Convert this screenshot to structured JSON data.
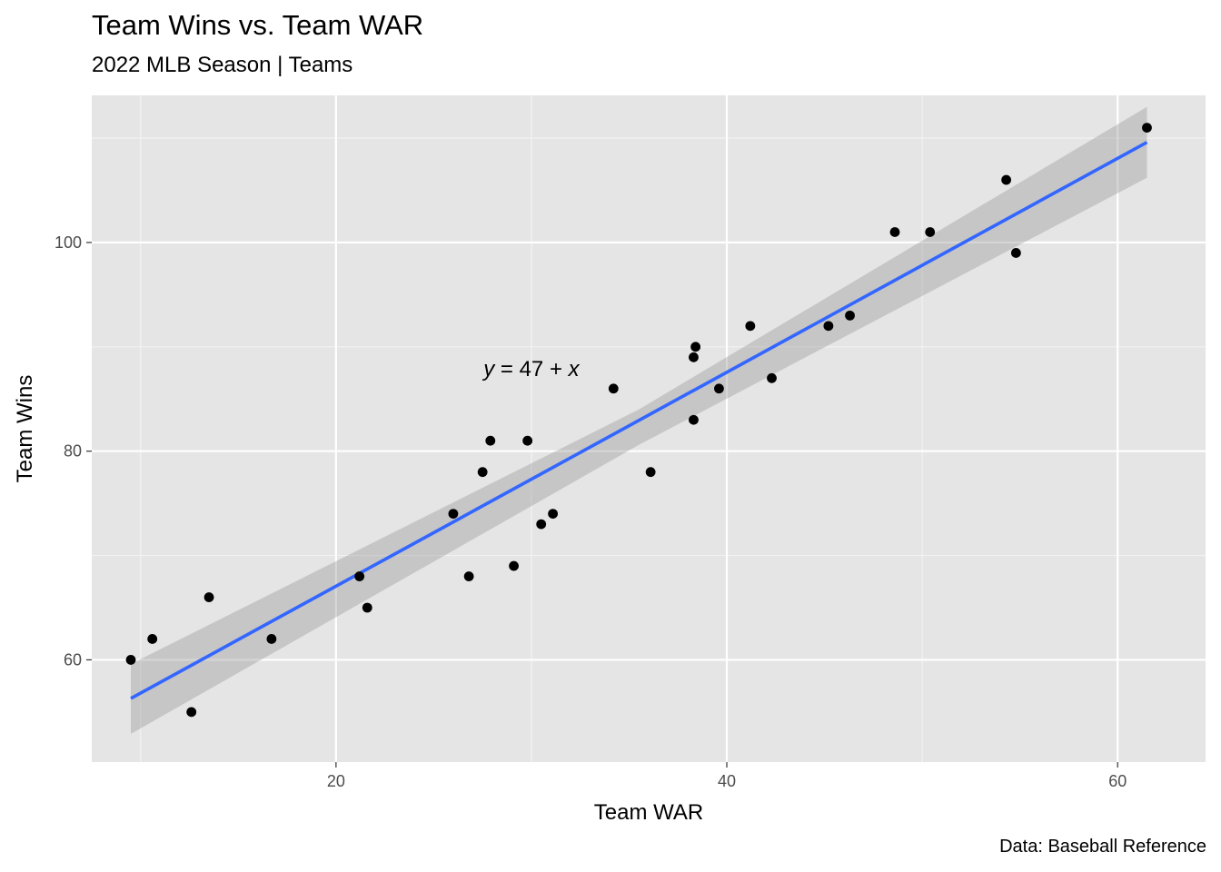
{
  "chart_data": {
    "type": "scatter",
    "title": "Team Wins vs. Team WAR",
    "subtitle": "2022 MLB Season | Teams",
    "caption": "Data: Baseball Reference",
    "xlabel": "Team WAR",
    "ylabel": "Team Wins",
    "xlim": [
      7.5,
      64.5
    ],
    "ylim": [
      50.2,
      114.1
    ],
    "x_ticks": [
      20,
      40,
      60
    ],
    "y_ticks": [
      60,
      80,
      100
    ],
    "x_tick_labels": [
      "20",
      "40",
      "60"
    ],
    "y_tick_labels": [
      "60",
      "80",
      "100"
    ],
    "grid": true,
    "panel_background": "#e5e5e5",
    "point_color": "#000000",
    "points": [
      {
        "x": 9.5,
        "y": 60
      },
      {
        "x": 10.6,
        "y": 62
      },
      {
        "x": 12.6,
        "y": 55
      },
      {
        "x": 13.5,
        "y": 66
      },
      {
        "x": 16.7,
        "y": 62
      },
      {
        "x": 21.2,
        "y": 68
      },
      {
        "x": 21.6,
        "y": 65
      },
      {
        "x": 26.0,
        "y": 74
      },
      {
        "x": 26.8,
        "y": 68
      },
      {
        "x": 27.5,
        "y": 78
      },
      {
        "x": 27.9,
        "y": 81
      },
      {
        "x": 29.1,
        "y": 69
      },
      {
        "x": 29.8,
        "y": 81
      },
      {
        "x": 30.5,
        "y": 73
      },
      {
        "x": 31.1,
        "y": 74
      },
      {
        "x": 34.2,
        "y": 86
      },
      {
        "x": 36.1,
        "y": 78
      },
      {
        "x": 38.3,
        "y": 83
      },
      {
        "x": 38.3,
        "y": 89
      },
      {
        "x": 38.4,
        "y": 90
      },
      {
        "x": 39.6,
        "y": 86
      },
      {
        "x": 41.2,
        "y": 92
      },
      {
        "x": 42.3,
        "y": 87
      },
      {
        "x": 45.2,
        "y": 92
      },
      {
        "x": 46.3,
        "y": 93
      },
      {
        "x": 48.6,
        "y": 101
      },
      {
        "x": 50.4,
        "y": 101
      },
      {
        "x": 54.3,
        "y": 106
      },
      {
        "x": 54.8,
        "y": 99
      },
      {
        "x": 61.5,
        "y": 111
      }
    ],
    "fit": {
      "method": "linear",
      "color": "#3366ff",
      "ribbon_color": "#999999",
      "line": [
        {
          "x": 9.5,
          "y": 56.3
        },
        {
          "x": 61.5,
          "y": 109.6
        }
      ],
      "ci_upper": [
        {
          "x": 9.5,
          "y": 59.6
        },
        {
          "x": 35.5,
          "y": 84.0
        },
        {
          "x": 61.5,
          "y": 113.0
        }
      ],
      "ci_lower": [
        {
          "x": 9.5,
          "y": 52.9
        },
        {
          "x": 35.5,
          "y": 80.6
        },
        {
          "x": 61.5,
          "y": 106.2
        }
      ]
    },
    "annotation": {
      "text_y": "y",
      "text_rest": " = 47 + ",
      "text_x": "x",
      "x": 30.0,
      "y": 88.0
    }
  }
}
